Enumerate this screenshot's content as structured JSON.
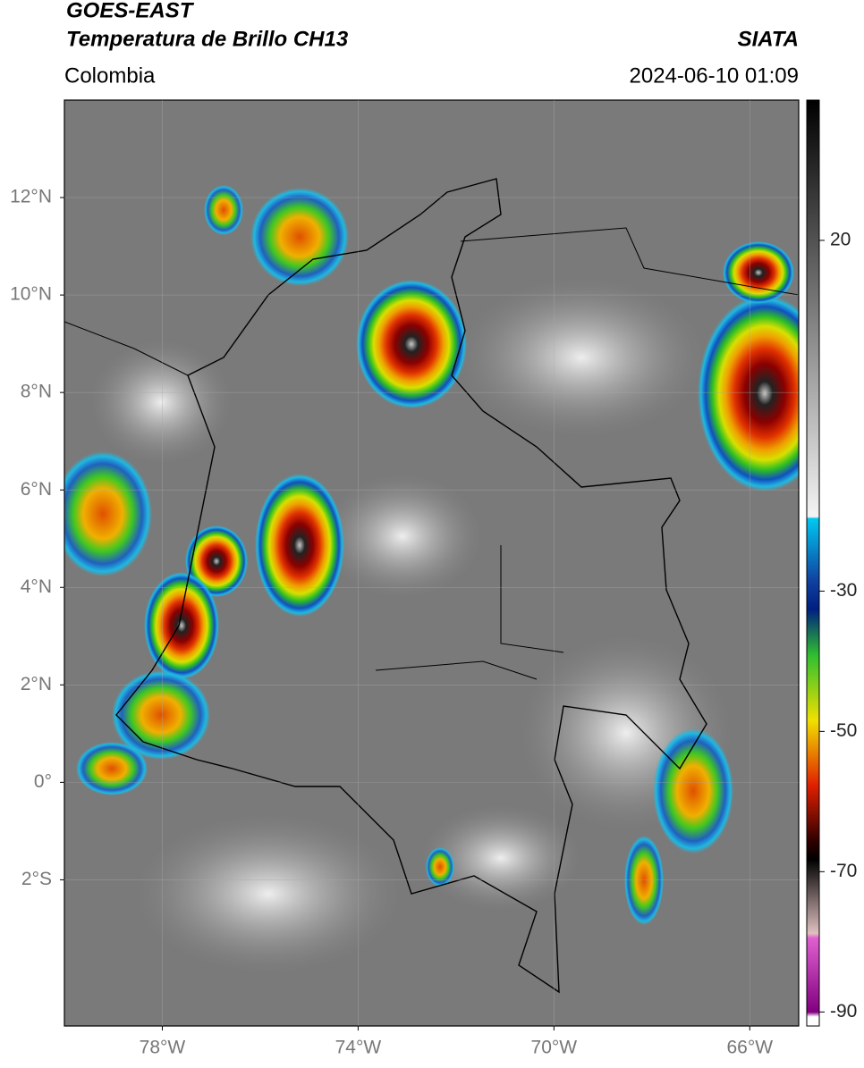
{
  "header": {
    "satellite": "GOES-EAST",
    "product": "Temperatura de Brillo CH13",
    "agency": "SIATA",
    "region": "Colombia",
    "datetime": "2024-06-10 01:09"
  },
  "map": {
    "xlim": [
      -80,
      -65
    ],
    "ylim": [
      -5,
      14
    ],
    "xticks": [
      {
        "value": -78,
        "label": "78°W"
      },
      {
        "value": -74,
        "label": "74°W"
      },
      {
        "value": -70,
        "label": "70°W"
      },
      {
        "value": -66,
        "label": "66°W"
      }
    ],
    "yticks": [
      {
        "value": 12,
        "label": "12°N"
      },
      {
        "value": 10,
        "label": "10°N"
      },
      {
        "value": 8,
        "label": "8°N"
      },
      {
        "value": 6,
        "label": "6°N"
      },
      {
        "value": 4,
        "label": "4°N"
      },
      {
        "value": 2,
        "label": "2°N"
      },
      {
        "value": 0,
        "label": "0°"
      },
      {
        "value": -2,
        "label": "2°S"
      }
    ],
    "grid": true
  },
  "colorbar": {
    "lim": [
      -92,
      40
    ],
    "ticks": [
      20,
      -30,
      -50,
      -70,
      -90
    ]
  }
}
